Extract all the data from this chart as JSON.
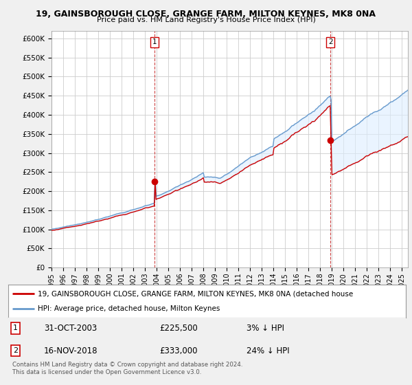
{
  "title": "19, GAINSBOROUGH CLOSE, GRANGE FARM, MILTON KEYNES, MK8 0NA",
  "subtitle": "Price paid vs. HM Land Registry's House Price Index (HPI)",
  "ylim": [
    0,
    620000
  ],
  "yticks": [
    0,
    50000,
    100000,
    150000,
    200000,
    250000,
    300000,
    350000,
    400000,
    450000,
    500000,
    550000,
    600000
  ],
  "ytick_labels": [
    "£0",
    "£50K",
    "£100K",
    "£150K",
    "£200K",
    "£250K",
    "£300K",
    "£350K",
    "£400K",
    "£450K",
    "£500K",
    "£550K",
    "£600K"
  ],
  "hpi_color": "#6699cc",
  "price_color": "#cc0000",
  "marker_color": "#cc0000",
  "vline_color": "#cc4444",
  "fill_color": "#ddeeff",
  "purchase1": {
    "date_x": 2003.83,
    "price": 225500,
    "label": "1"
  },
  "purchase2": {
    "date_x": 2018.88,
    "price": 333000,
    "label": "2"
  },
  "legend_line1": "19, GAINSBOROUGH CLOSE, GRANGE FARM, MILTON KEYNES, MK8 0NA (detached house",
  "legend_line2": "HPI: Average price, detached house, Milton Keynes",
  "table_row1": [
    "1",
    "31-OCT-2003",
    "£225,500",
    "3% ↓ HPI"
  ],
  "table_row2": [
    "2",
    "16-NOV-2018",
    "£333,000",
    "24% ↓ HPI"
  ],
  "footnote": "Contains HM Land Registry data © Crown copyright and database right 2024.\nThis data is licensed under the Open Government Licence v3.0.",
  "bg_color": "#f0f0f0",
  "plot_bg_color": "#ffffff",
  "grid_color": "#cccccc",
  "xlim_start": 1995,
  "xlim_end": 2025.5
}
